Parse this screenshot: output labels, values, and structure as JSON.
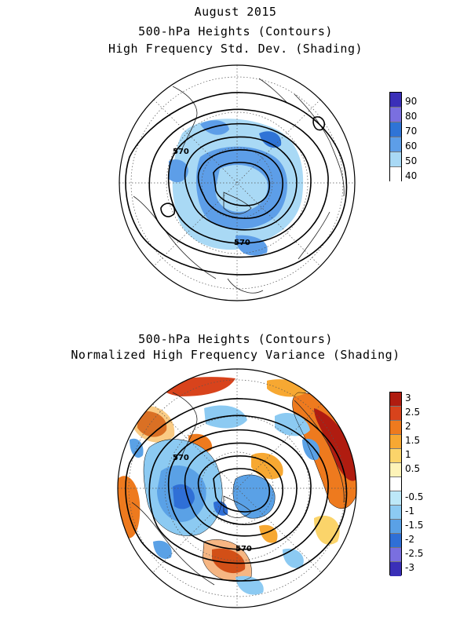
{
  "top_panel": {
    "titles": [
      "August 2015",
      "500-hPa Heights (Contours)",
      "High Frequency Std. Dev. (Shading)"
    ],
    "contour_labels": [
      "570",
      "570"
    ],
    "legend": {
      "labels": [
        "90",
        "80",
        "70",
        "60",
        "50",
        "40"
      ],
      "colors": [
        "#3a2fb8",
        "#7a6fe0",
        "#2f74d6",
        "#5d9ee8",
        "#a9d9f5",
        "#ffffff"
      ]
    }
  },
  "bottom_panel": {
    "titles": [
      "500-hPa Heights (Contours)",
      "Normalized High Frequency Variance (Shading)"
    ],
    "contour_labels": [
      "570",
      "570"
    ],
    "legend": {
      "labels": [
        "3",
        "2.5",
        "2",
        "1.5",
        "1",
        "0.5",
        "-0.5",
        "-1",
        "-1.5",
        "-2",
        "-2.5",
        "-3"
      ],
      "colors": [
        "#b01c10",
        "#d8431c",
        "#ee7a1e",
        "#f7a832",
        "#fbd46a",
        "#fdf3b8",
        "#ffffff",
        "#bde8f8",
        "#8ccaf2",
        "#5aa1e6",
        "#2f6fd6",
        "#7a6fe0",
        "#3a2fb8"
      ]
    }
  }
}
